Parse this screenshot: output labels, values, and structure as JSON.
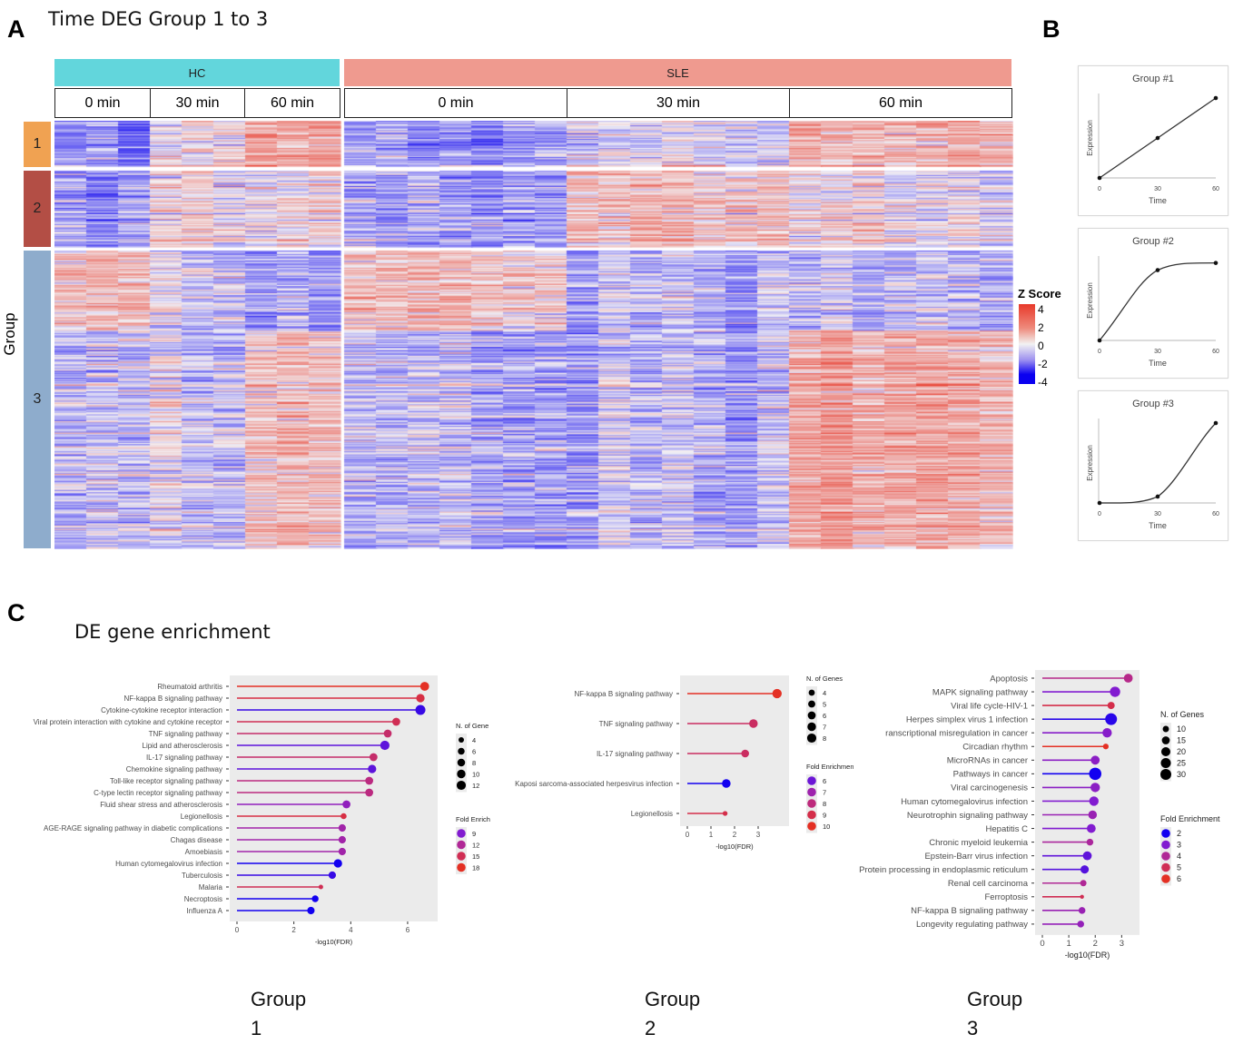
{
  "panel_a": {
    "letter": "A",
    "title": "Time DEG Group 1 to 3",
    "conditions": [
      {
        "label": "HC",
        "color": "#62d6dc"
      },
      {
        "label": "SLE",
        "color": "#ef9a8f"
      }
    ],
    "hc_times": [
      "0 min",
      "30 min",
      "60 min"
    ],
    "sle_times": [
      "0 min",
      "30 min",
      "60 min"
    ],
    "row_axis_label": "Group",
    "row_groups": [
      {
        "label": "1",
        "color": "#f0a252"
      },
      {
        "label": "2",
        "color": "#b34e45"
      },
      {
        "label": "3",
        "color": "#8eaccc"
      }
    ],
    "legend": {
      "title": "Z Score",
      "ticks": [
        "4",
        "2",
        "0",
        "-2",
        "-4"
      ],
      "colors": {
        "high": "#e8392a",
        "mid": "#f2f2f2",
        "low": "#0a00f0"
      }
    }
  },
  "panel_b": {
    "letter": "B",
    "x_label": "Time",
    "y_label": "Expression",
    "x_ticks": [
      "0",
      "30",
      "60"
    ],
    "profiles": [
      {
        "title": "Group #1",
        "shape": "linear",
        "points": [
          0,
          0.5,
          1.0
        ]
      },
      {
        "title": "Group #2",
        "shape": "plateau",
        "points": [
          0,
          0.88,
          0.97
        ]
      },
      {
        "title": "Group #3",
        "shape": "late-rise",
        "points": [
          0,
          0.08,
          1.0
        ]
      }
    ]
  },
  "panel_c": {
    "letter": "C",
    "title": "DE gene enrichment",
    "footer_labels": [
      {
        "line1": "Group",
        "line2": "1"
      },
      {
        "line1": "Group",
        "line2": "2"
      },
      {
        "line1": "Group",
        "line2": "3"
      }
    ]
  },
  "chart_data": [
    {
      "type": "heatmap",
      "title": "Time DEG Group 1 to 3",
      "columns_groups": [
        "HC 0 min",
        "HC 30 min",
        "HC 60 min",
        "SLE 0 min",
        "SLE 30 min",
        "SLE 60 min"
      ],
      "row_groups": [
        "1",
        "2",
        "3"
      ],
      "color_scale": {
        "label": "Z Score",
        "min": -4,
        "max": 4
      },
      "pattern_mean_z": {
        "1": {
          "HC": [
            -1.2,
            0.1,
            0.9
          ],
          "SLE": [
            -1.0,
            -0.3,
            0.8
          ]
        },
        "2": {
          "HC": [
            -0.8,
            0.3,
            0.4
          ],
          "SLE": [
            -0.6,
            0.6,
            0.1
          ]
        },
        "3": {
          "HC": [
            -0.4,
            -0.2,
            0.7
          ],
          "SLE": [
            -0.6,
            -0.5,
            1.0
          ]
        }
      }
    },
    {
      "type": "scatter",
      "subtype": "lollipop",
      "title": "Group 1",
      "xlabel": "-log10(FDR)",
      "xlim": [
        0,
        6.8
      ],
      "xticks": [
        0,
        2,
        4,
        6
      ],
      "size_legend": {
        "title": "N. of Gene",
        "values": [
          4,
          6,
          8,
          10,
          12
        ]
      },
      "color_legend": {
        "title": "Fold Enrich",
        "values": [
          9,
          12,
          15,
          18
        ]
      },
      "categories": [
        "Rheumatoid arthritis",
        "NF-kappa B signaling pathway",
        "Cytokine-cytokine receptor interaction",
        "Viral protein interaction with cytokine and cytokine receptor",
        "TNF signaling pathway",
        "Lipid and atherosclerosis",
        "IL-17 signaling pathway",
        "Chemokine signaling pathway",
        "Toll-like receptor signaling pathway",
        "C-type lectin receptor signaling pathway",
        "Fluid shear stress and atherosclerosis",
        "Legionellosis",
        "AGE-RAGE signaling pathway in diabetic complications",
        "Chagas disease",
        "Amoebiasis",
        "Human cytomegalovirus infection",
        "Tuberculosis",
        "Malaria",
        "Necroptosis",
        "Influenza A"
      ],
      "values": [
        6.6,
        6.45,
        6.45,
        5.6,
        5.3,
        5.2,
        4.8,
        4.75,
        4.65,
        4.65,
        3.85,
        3.75,
        3.7,
        3.7,
        3.7,
        3.55,
        3.35,
        2.95,
        2.75,
        2.6
      ],
      "n_genes": [
        9,
        8,
        12,
        7,
        7,
        10,
        7,
        8,
        7,
        7,
        7,
        4,
        6,
        6,
        6,
        8,
        6,
        3,
        5,
        6
      ],
      "fold_enrichment": [
        18,
        16,
        7,
        15,
        14,
        8,
        14,
        8,
        13,
        13,
        10,
        16,
        11,
        11,
        11,
        5,
        7,
        15,
        6,
        4
      ]
    },
    {
      "type": "scatter",
      "subtype": "lollipop",
      "title": "Group 2",
      "xlabel": "-log10(FDR)",
      "xlim": [
        0,
        4
      ],
      "xticks": [
        0,
        1,
        2,
        3
      ],
      "size_legend": {
        "title": "N. of Genes",
        "values": [
          4,
          5,
          6,
          7,
          8
        ]
      },
      "color_legend": {
        "title": "Fold Enrichment",
        "values": [
          6,
          7,
          8,
          9,
          10
        ]
      },
      "categories": [
        "NF-kappa B signaling pathway",
        "TNF signaling pathway",
        "IL-17 signaling pathway",
        "Kaposi sarcoma-associated herpesvirus infection",
        "Legionellosis"
      ],
      "values": [
        3.8,
        2.8,
        2.45,
        1.65,
        1.6
      ],
      "n_genes": [
        7,
        6,
        5,
        6,
        3
      ],
      "fold_enrichment": [
        10,
        8.5,
        8.5,
        5,
        9
      ]
    },
    {
      "type": "scatter",
      "subtype": "lollipop",
      "title": "Group 3",
      "xlabel": "-log10(FDR)",
      "xlim": [
        0,
        3.4
      ],
      "xticks": [
        0,
        1,
        2,
        3
      ],
      "size_legend": {
        "title": "N. of Genes",
        "values": [
          10,
          15,
          20,
          25,
          30
        ]
      },
      "color_legend": {
        "title": "Fold Enrichment",
        "values": [
          2,
          3,
          4,
          5,
          6
        ]
      },
      "categories": [
        "Apoptosis",
        "MAPK signaling pathway",
        "Viral life cycle-HIV-1",
        "Herpes simplex virus 1 infection",
        "ranscriptional misregulation in cancer",
        "Circadian rhythm",
        "MicroRNAs in cancer",
        "Pathways in cancer",
        "Viral carcinogenesis",
        "Human cytomegalovirus infection",
        "Neurotrophin signaling pathway",
        "Hepatitis C",
        "Chronic myeloid leukemia",
        "Epstein-Barr virus infection",
        "Protein processing in endoplasmic reticulum",
        "Renal cell carcinoma",
        "Ferroptosis",
        "NF-kappa B signaling pathway",
        "Longevity regulating pathway"
      ],
      "values": [
        3.25,
        2.75,
        2.6,
        2.6,
        2.45,
        2.4,
        2.0,
        2.0,
        2.0,
        1.95,
        1.9,
        1.85,
        1.8,
        1.7,
        1.6,
        1.55,
        1.5,
        1.5,
        1.45
      ],
      "n_genes": [
        16,
        22,
        11,
        30,
        18,
        8,
        16,
        33,
        18,
        18,
        15,
        16,
        10,
        16,
        14,
        9,
        6,
        10,
        10
      ],
      "fold_enrichment": [
        4.2,
        3.0,
        5.2,
        2.2,
        3.1,
        6.0,
        3.2,
        1.9,
        3.2,
        3.0,
        3.5,
        3.0,
        3.9,
        2.7,
        2.6,
        4.0,
        5.0,
        3.5,
        3.4
      ]
    }
  ]
}
